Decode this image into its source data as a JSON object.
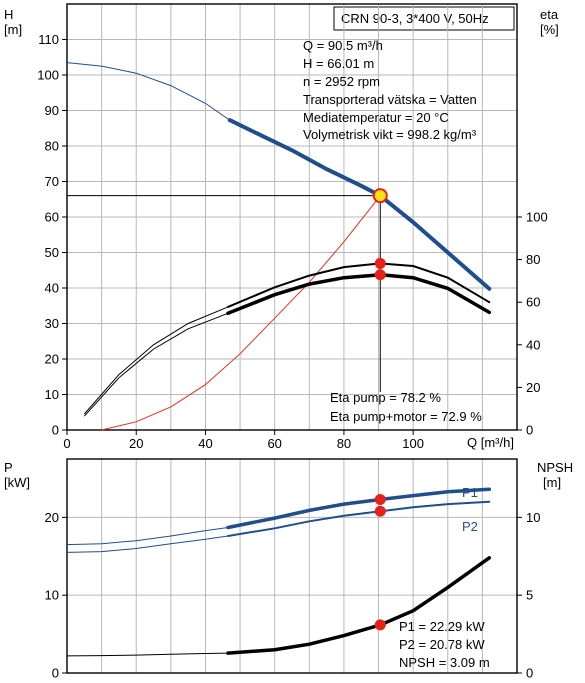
{
  "header": {
    "title": "CRN 90-3, 3*400 V, 50Hz"
  },
  "info": {
    "lines": [
      "Q = 90.5 m³/h",
      "H = 66.01 m",
      "n = 2952 rpm",
      "Transporterad vätska = Vatten",
      "Mediatemperatur = 20 °C",
      "Volymetrisk vikt = 998.2 kg/m³"
    ],
    "eta_lines": [
      "Eta pump = 78.2 %",
      "Eta pump+motor = 72.9 %"
    ],
    "power_lines": [
      "P1 = 22.29 kW",
      "P2 = 20.78 kW",
      "NPSH = 3.09 m"
    ]
  },
  "chart_data": [
    {
      "id": "head-efficiency",
      "type": "line",
      "x_label": "Q [m³/h]",
      "x_range": [
        0,
        130
      ],
      "x_ticks": [
        0,
        20,
        40,
        60,
        80,
        100
      ],
      "y_left_label": [
        "H",
        "[m]"
      ],
      "y_left_range": [
        0,
        120
      ],
      "y_left_ticks": [
        0,
        10,
        20,
        30,
        40,
        50,
        60,
        70,
        80,
        90,
        100,
        110
      ],
      "y_right_label": [
        "eta",
        "[%]"
      ],
      "y_right_range": [
        0,
        200
      ],
      "y_right_ticks": [
        0,
        20,
        40,
        60,
        80,
        100
      ],
      "colors": {
        "head": "#1f4e8c",
        "eta": "#000000",
        "system": "#e0301e",
        "marker": "#e8201a",
        "duty_point": "#f5e21a"
      },
      "head_curve": {
        "extended": [
          [
            0,
            103.5
          ],
          [
            10,
            102.5
          ],
          [
            20,
            100.5
          ],
          [
            30,
            97
          ],
          [
            40,
            92
          ],
          [
            47,
            87.3
          ]
        ],
        "main": [
          [
            47,
            87.3
          ],
          [
            55,
            83.5
          ],
          [
            65,
            78.8
          ],
          [
            75,
            73.5
          ],
          [
            85,
            68.8
          ],
          [
            90.5,
            66.01
          ],
          [
            100,
            58.5
          ],
          [
            110,
            50
          ],
          [
            122,
            39.8
          ]
        ]
      },
      "system_curve": [
        [
          10,
          0
        ],
        [
          20,
          2.3
        ],
        [
          30,
          6.5
        ],
        [
          40,
          12.8
        ],
        [
          50,
          21.5
        ],
        [
          60,
          31.5
        ],
        [
          70,
          41.6
        ],
        [
          80,
          53
        ],
        [
          90.5,
          66.01
        ]
      ],
      "duty_point": {
        "q": 90.5,
        "h": 66.01
      },
      "eta_pump": {
        "extended": [
          [
            5,
            7.5
          ],
          [
            15,
            26
          ],
          [
            25,
            40
          ],
          [
            35,
            50
          ],
          [
            46.5,
            57.8
          ]
        ],
        "main": [
          [
            46.5,
            57.8
          ],
          [
            60,
            67
          ],
          [
            70,
            72.5
          ],
          [
            80,
            76.5
          ],
          [
            90.5,
            78.2
          ],
          [
            100,
            77
          ],
          [
            110,
            71.5
          ],
          [
            122,
            60
          ]
        ]
      },
      "eta_pump_motor": {
        "extended": [
          [
            5,
            6.5
          ],
          [
            15,
            24.5
          ],
          [
            25,
            38
          ],
          [
            35,
            47.5
          ],
          [
            46.5,
            54.8
          ]
        ],
        "main": [
          [
            46.5,
            54.8
          ],
          [
            60,
            63.5
          ],
          [
            70,
            68.5
          ],
          [
            80,
            71.5
          ],
          [
            90.5,
            72.9
          ],
          [
            100,
            71.5
          ],
          [
            110,
            66.5
          ],
          [
            122,
            55.2
          ]
        ]
      },
      "eta_markers": [
        {
          "q": 90.5,
          "eta": 78.2
        },
        {
          "q": 90.5,
          "eta": 72.9
        }
      ]
    },
    {
      "id": "power-npsh",
      "type": "line",
      "x_range": [
        0,
        130
      ],
      "y_left_label": [
        "P",
        "[kW]"
      ],
      "y_left_range": [
        0,
        27.5
      ],
      "y_left_ticks": [
        0,
        10,
        20
      ],
      "y_right_label": [
        "NPSH",
        "[m]"
      ],
      "y_right_range": [
        0,
        13.75
      ],
      "y_right_ticks": [
        0,
        5,
        10
      ],
      "colors": {
        "power": "#1f4e8c",
        "npsh": "#000000",
        "marker": "#e8201a",
        "label": "#1f4e8c"
      },
      "p1_curve": {
        "name": "P1",
        "extended": [
          [
            0,
            16.5
          ],
          [
            10,
            16.6
          ],
          [
            20,
            17
          ],
          [
            30,
            17.6
          ],
          [
            40,
            18.3
          ],
          [
            46.5,
            18.7
          ]
        ],
        "main": [
          [
            46.5,
            18.7
          ],
          [
            60,
            19.9
          ],
          [
            70,
            20.9
          ],
          [
            80,
            21.7
          ],
          [
            90.5,
            22.29
          ],
          [
            100,
            22.8
          ],
          [
            110,
            23.3
          ],
          [
            122,
            23.6
          ]
        ]
      },
      "p2_curve": {
        "name": "P2",
        "extended": [
          [
            0,
            15.5
          ],
          [
            10,
            15.6
          ],
          [
            20,
            16
          ],
          [
            30,
            16.6
          ],
          [
            40,
            17.2
          ],
          [
            46.5,
            17.6
          ]
        ],
        "main": [
          [
            46.5,
            17.6
          ],
          [
            60,
            18.6
          ],
          [
            70,
            19.5
          ],
          [
            80,
            20.2
          ],
          [
            90.5,
            20.78
          ],
          [
            100,
            21.3
          ],
          [
            110,
            21.7
          ],
          [
            122,
            22
          ]
        ]
      },
      "npsh_curve": {
        "extended": [
          [
            0,
            1.1
          ],
          [
            10,
            1.12
          ],
          [
            20,
            1.15
          ],
          [
            30,
            1.2
          ],
          [
            40,
            1.25
          ],
          [
            46.5,
            1.28
          ]
        ],
        "main": [
          [
            46.5,
            1.28
          ],
          [
            60,
            1.5
          ],
          [
            70,
            1.85
          ],
          [
            80,
            2.4
          ],
          [
            90.5,
            3.09
          ],
          [
            100,
            4.0
          ],
          [
            110,
            5.5
          ],
          [
            122,
            7.4
          ]
        ]
      },
      "markers": [
        {
          "q": 90.5,
          "p": 22.29
        },
        {
          "q": 90.5,
          "p": 20.78
        },
        {
          "q": 90.5,
          "npsh": 3.09
        }
      ]
    }
  ]
}
